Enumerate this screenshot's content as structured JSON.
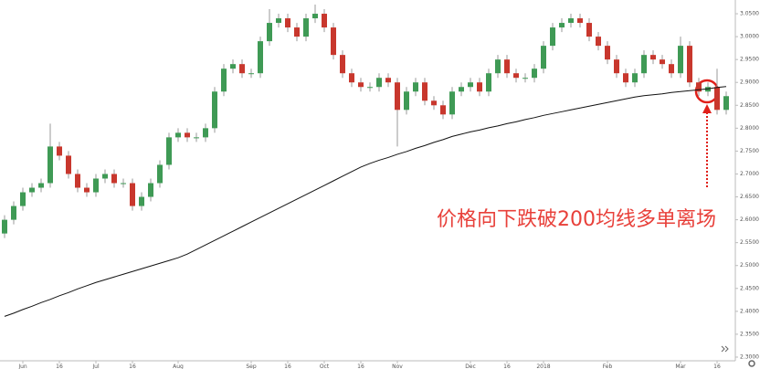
{
  "chart_data": {
    "type": "candlestick",
    "categories": [
      null,
      null,
      "Jun",
      null,
      null,
      null,
      "16",
      null,
      null,
      null,
      "Jul",
      null,
      null,
      null,
      "16",
      null,
      null,
      null,
      null,
      "Aug",
      null,
      null,
      null,
      null,
      null,
      null,
      null,
      "Sep",
      null,
      null,
      null,
      "16",
      null,
      null,
      null,
      "Oct",
      null,
      null,
      null,
      "16",
      null,
      null,
      null,
      "Nov",
      null,
      null,
      null,
      null,
      null,
      null,
      null,
      "Dec",
      null,
      null,
      null,
      "16",
      null,
      null,
      null,
      "2018",
      null,
      null,
      null,
      null,
      null,
      null,
      "Feb",
      null,
      null,
      null,
      null,
      null,
      null,
      null,
      "Mar",
      null,
      null,
      null,
      "16",
      null
    ],
    "open": [
      2.57,
      2.6,
      2.63,
      2.66,
      2.67,
      2.68,
      2.76,
      2.74,
      2.7,
      2.67,
      2.66,
      2.69,
      2.7,
      2.68,
      2.68,
      2.63,
      2.65,
      2.68,
      2.72,
      2.78,
      2.79,
      2.78,
      2.78,
      2.8,
      2.88,
      2.93,
      2.94,
      2.92,
      2.92,
      2.99,
      3.03,
      3.04,
      3.02,
      3.0,
      3.04,
      3.05,
      3.02,
      2.96,
      2.92,
      2.9,
      2.89,
      2.89,
      2.91,
      2.9,
      2.84,
      2.88,
      2.9,
      2.86,
      2.85,
      2.83,
      2.88,
      2.89,
      2.9,
      2.88,
      2.92,
      2.95,
      2.92,
      2.91,
      2.91,
      2.93,
      2.98,
      3.02,
      3.03,
      3.04,
      3.03,
      3.0,
      2.98,
      2.95,
      2.92,
      2.9,
      2.92,
      2.96,
      2.95,
      2.94,
      2.92,
      2.98,
      2.9,
      2.88,
      2.89,
      2.84
    ],
    "high": [
      2.61,
      2.64,
      2.67,
      2.68,
      2.69,
      2.81,
      2.77,
      2.75,
      2.71,
      2.68,
      2.7,
      2.71,
      2.71,
      2.69,
      2.69,
      2.66,
      2.69,
      2.73,
      2.79,
      2.8,
      2.8,
      2.79,
      2.81,
      2.89,
      2.94,
      2.95,
      2.95,
      2.93,
      3.0,
      3.06,
      3.05,
      3.05,
      3.03,
      3.05,
      3.07,
      3.06,
      3.03,
      2.97,
      2.93,
      2.91,
      2.9,
      2.92,
      2.92,
      2.91,
      2.89,
      2.91,
      2.91,
      2.87,
      2.86,
      2.89,
      2.9,
      2.91,
      2.91,
      2.93,
      2.96,
      2.96,
      2.93,
      2.92,
      2.94,
      2.99,
      3.03,
      3.04,
      3.05,
      3.05,
      3.04,
      3.01,
      2.99,
      2.96,
      2.93,
      2.93,
      2.97,
      2.97,
      2.96,
      2.95,
      3.0,
      2.99,
      2.91,
      2.9,
      2.93,
      2.88
    ],
    "low": [
      2.56,
      2.59,
      2.62,
      2.65,
      2.66,
      2.67,
      2.73,
      2.69,
      2.66,
      2.65,
      2.65,
      2.68,
      2.67,
      2.67,
      2.62,
      2.62,
      2.64,
      2.67,
      2.71,
      2.77,
      2.77,
      2.77,
      2.77,
      2.79,
      2.87,
      2.92,
      2.91,
      2.91,
      2.91,
      2.98,
      3.02,
      3.01,
      2.99,
      2.99,
      3.03,
      3.01,
      2.95,
      2.91,
      2.89,
      2.88,
      2.88,
      2.88,
      2.89,
      2.76,
      2.83,
      2.87,
      2.85,
      2.84,
      2.82,
      2.82,
      2.87,
      2.88,
      2.87,
      2.87,
      2.91,
      2.91,
      2.9,
      2.9,
      2.9,
      2.92,
      2.97,
      3.01,
      3.02,
      3.02,
      2.99,
      2.97,
      2.94,
      2.91,
      2.89,
      2.89,
      2.91,
      2.94,
      2.93,
      2.91,
      2.91,
      2.89,
      2.87,
      2.87,
      2.83,
      2.83
    ],
    "close": [
      2.6,
      2.63,
      2.66,
      2.67,
      2.68,
      2.76,
      2.74,
      2.7,
      2.67,
      2.66,
      2.69,
      2.7,
      2.68,
      2.68,
      2.63,
      2.65,
      2.68,
      2.72,
      2.78,
      2.79,
      2.78,
      2.78,
      2.8,
      2.88,
      2.93,
      2.94,
      2.92,
      2.92,
      2.99,
      3.03,
      3.04,
      3.02,
      3.0,
      3.04,
      3.05,
      3.02,
      2.96,
      2.92,
      2.9,
      2.89,
      2.89,
      2.91,
      2.9,
      2.84,
      2.88,
      2.9,
      2.86,
      2.85,
      2.83,
      2.88,
      2.89,
      2.9,
      2.88,
      2.92,
      2.95,
      2.92,
      2.91,
      2.91,
      2.93,
      2.98,
      3.02,
      3.03,
      3.04,
      3.03,
      3.0,
      2.98,
      2.95,
      2.92,
      2.9,
      2.92,
      2.96,
      2.95,
      2.94,
      2.92,
      2.98,
      2.9,
      2.88,
      2.89,
      2.84,
      2.87
    ],
    "up_color": "#3f9a55",
    "down_color": "#c8372d",
    "ma": {
      "color": "#111111",
      "values": [
        2.389,
        2.396,
        2.404,
        2.411,
        2.419,
        2.426,
        2.434,
        2.441,
        2.449,
        2.456,
        2.463,
        2.469,
        2.475,
        2.481,
        2.487,
        2.493,
        2.499,
        2.505,
        2.511,
        2.517,
        2.525,
        2.535,
        2.545,
        2.555,
        2.565,
        2.575,
        2.585,
        2.595,
        2.605,
        2.615,
        2.625,
        2.635,
        2.645,
        2.655,
        2.665,
        2.675,
        2.685,
        2.695,
        2.705,
        2.715,
        2.723,
        2.73,
        2.736,
        2.743,
        2.749,
        2.756,
        2.762,
        2.769,
        2.775,
        2.782,
        2.787,
        2.792,
        2.796,
        2.801,
        2.805,
        2.81,
        2.814,
        2.819,
        2.823,
        2.828,
        2.832,
        2.836,
        2.84,
        2.844,
        2.848,
        2.852,
        2.856,
        2.86,
        2.864,
        2.868,
        2.871,
        2.873,
        2.875,
        2.878,
        2.88,
        2.882,
        2.884,
        2.886,
        2.889,
        2.891
      ]
    },
    "ylim": [
      2.286,
      3.08
    ],
    "yticks": [
      {
        "value": 2.3,
        "label": "2.3000"
      },
      {
        "value": 2.35,
        "label": "2.3500"
      },
      {
        "value": 2.4,
        "label": "2.4000"
      },
      {
        "value": 2.45,
        "label": "2.4500"
      },
      {
        "value": 2.5,
        "label": "2.5000"
      },
      {
        "value": 2.55,
        "label": "2.5500"
      },
      {
        "value": 2.6,
        "label": "2.6000"
      },
      {
        "value": 2.65,
        "label": "2.6500"
      },
      {
        "value": 2.7,
        "label": "2.7000"
      },
      {
        "value": 2.75,
        "label": "2.7500"
      },
      {
        "value": 2.8,
        "label": "2.8000"
      },
      {
        "value": 2.85,
        "label": "2.8500"
      },
      {
        "value": 2.9,
        "label": "2.9000"
      },
      {
        "value": 2.95,
        "label": "2.9500"
      },
      {
        "value": 3.0,
        "label": "3.0000"
      },
      {
        "value": 3.05,
        "label": "3.0500"
      }
    ],
    "annotation": "价格向下跌破200均线多单离场",
    "annotation_color": "#e8403a"
  }
}
